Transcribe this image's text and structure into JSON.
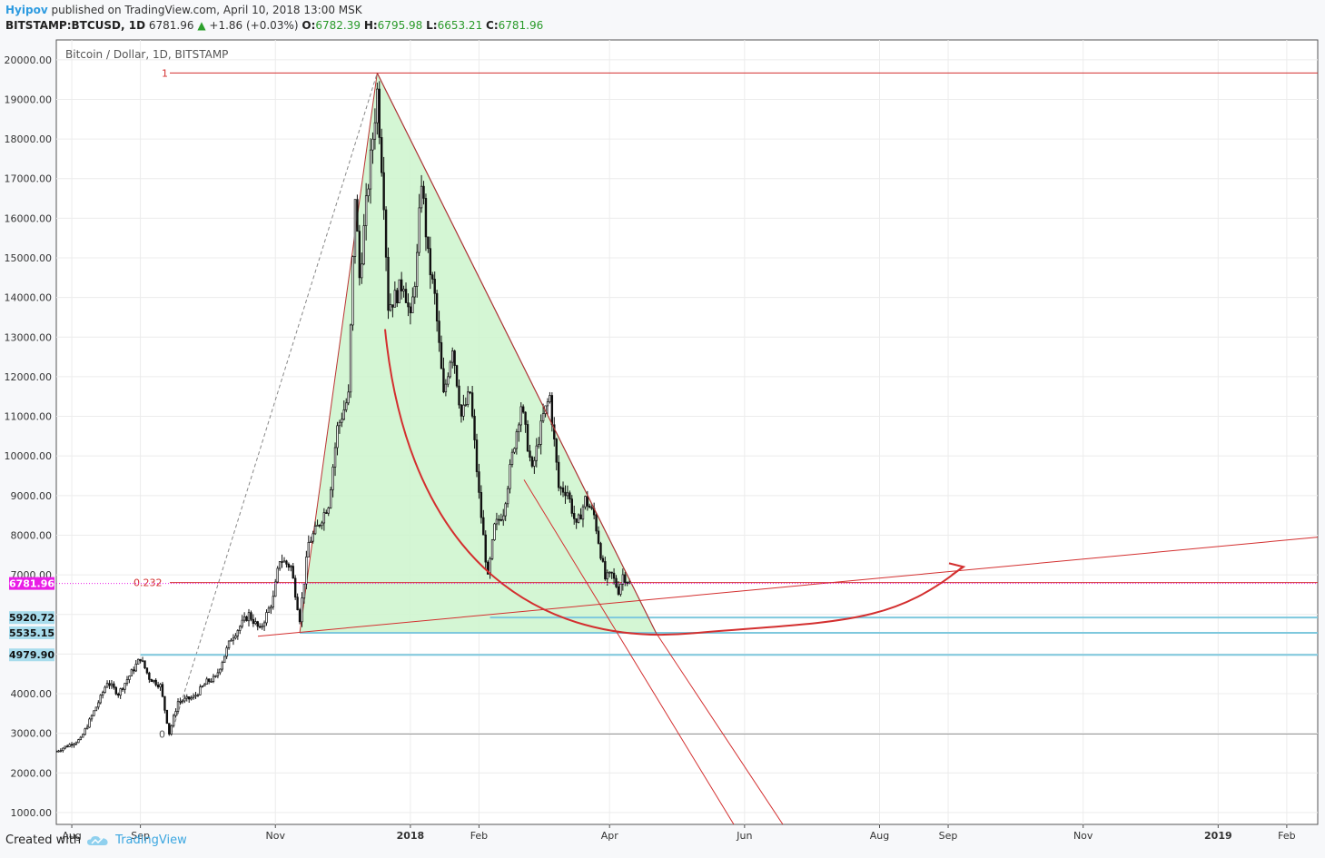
{
  "header": {
    "author": "Hyipov",
    "published_text": "published on TradingView.com, April 10, 2018 13:00 MSK",
    "symbol": "BITSTAMP:BTCUSD, 1D",
    "last_price": "6781.96",
    "change": "+1.86 (+0.03%)",
    "open_label": "O:",
    "open": "6782.39",
    "high_label": "H:",
    "high": "6795.98",
    "low_label": "L:",
    "low": "6653.21",
    "close_label": "C:",
    "close": "6781.96"
  },
  "footer": {
    "created_with": "Created with",
    "brand": "TradingView"
  },
  "colors": {
    "accent_red": "#d32f2f",
    "triangle_fill": "#ccf5cc",
    "support_blue": "#7ec8dd",
    "price_tag": "#e91ee6",
    "label_bg": "#a8dcec"
  },
  "chart_data": {
    "type": "candlestick",
    "title": "Bitcoin / Dollar, 1D, BITSTAMP",
    "ylim": [
      700,
      20500
    ],
    "y_ticks": [
      1000,
      2000,
      3000,
      4000,
      5000,
      6000,
      7000,
      8000,
      9000,
      10000,
      11000,
      12000,
      13000,
      14000,
      15000,
      16000,
      17000,
      18000,
      19000,
      20000
    ],
    "y_tick_labels": [
      "1000.00",
      "2000.00",
      "3000.00",
      "4000.00",
      "4979.90",
      "5535.15",
      "5920.72",
      "6781.96",
      "7000.00",
      "8000.00",
      "9000.00",
      "10000.00",
      "11000.00",
      "12000.00",
      "13000.00",
      "14000.00",
      "15000.00",
      "16000.00",
      "17000.00",
      "18000.00",
      "19000.00",
      "20000.00"
    ],
    "x_ticks": [
      {
        "date": "2017-08-01",
        "label": "Aug"
      },
      {
        "date": "2017-09-01",
        "label": "Sep"
      },
      {
        "date": "2017-11-01",
        "label": "Nov"
      },
      {
        "date": "2018-01-01",
        "label": "2018"
      },
      {
        "date": "2018-02-01",
        "label": "Feb"
      },
      {
        "date": "2018-04-01",
        "label": "Apr"
      },
      {
        "date": "2018-06-01",
        "label": "Jun"
      },
      {
        "date": "2018-08-01",
        "label": "Aug"
      },
      {
        "date": "2018-09-01",
        "label": "Sep"
      },
      {
        "date": "2018-11-01",
        "label": "Nov"
      },
      {
        "date": "2019-01-01",
        "label": "2019"
      },
      {
        "date": "2019-02-01",
        "label": "Feb"
      }
    ],
    "x_range": [
      "2017-07-25",
      "2019-02-15"
    ],
    "price_path": [
      [
        "2017-07-25",
        2550
      ],
      [
        "2017-08-05",
        2850
      ],
      [
        "2017-08-14",
        3900
      ],
      [
        "2017-08-17",
        4300
      ],
      [
        "2017-08-22",
        4000
      ],
      [
        "2017-09-01",
        4900
      ],
      [
        "2017-09-05",
        4400
      ],
      [
        "2017-09-10",
        4200
      ],
      [
        "2017-09-14",
        3000
      ],
      [
        "2017-09-18",
        3800
      ],
      [
        "2017-09-25",
        3900
      ],
      [
        "2017-10-01",
        4300
      ],
      [
        "2017-10-05",
        4400
      ],
      [
        "2017-10-12",
        5400
      ],
      [
        "2017-10-20",
        6000
      ],
      [
        "2017-10-25",
        5600
      ],
      [
        "2017-10-31",
        6400
      ],
      [
        "2017-11-03",
        7400
      ],
      [
        "2017-11-08",
        7200
      ],
      [
        "2017-11-12",
        5900
      ],
      [
        "2017-11-16",
        7800
      ],
      [
        "2017-11-20",
        8200
      ],
      [
        "2017-11-25",
        8800
      ],
      [
        "2017-11-29",
        10700
      ],
      [
        "2017-12-04",
        11500
      ],
      [
        "2017-12-07",
        16600
      ],
      [
        "2017-12-09",
        14500
      ],
      [
        "2017-12-13",
        16900
      ],
      [
        "2017-12-17",
        19200
      ],
      [
        "2017-12-20",
        16500
      ],
      [
        "2017-12-22",
        13800
      ],
      [
        "2017-12-25",
        14000
      ],
      [
        "2017-12-29",
        14400
      ],
      [
        "2018-01-01",
        13400
      ],
      [
        "2018-01-04",
        15000
      ],
      [
        "2018-01-06",
        17000
      ],
      [
        "2018-01-09",
        15000
      ],
      [
        "2018-01-12",
        14000
      ],
      [
        "2018-01-16",
        11500
      ],
      [
        "2018-01-20",
        12800
      ],
      [
        "2018-01-24",
        11000
      ],
      [
        "2018-01-28",
        11600
      ],
      [
        "2018-02-01",
        9000
      ],
      [
        "2018-02-05",
        6900
      ],
      [
        "2018-02-08",
        8200
      ],
      [
        "2018-02-12",
        8600
      ],
      [
        "2018-02-16",
        10000
      ],
      [
        "2018-02-20",
        11300
      ],
      [
        "2018-02-25",
        9600
      ],
      [
        "2018-03-02",
        11000
      ],
      [
        "2018-03-05",
        11500
      ],
      [
        "2018-03-09",
        9200
      ],
      [
        "2018-03-13",
        9100
      ],
      [
        "2018-03-17",
        8200
      ],
      [
        "2018-03-21",
        8900
      ],
      [
        "2018-03-25",
        8500
      ],
      [
        "2018-03-30",
        6900
      ],
      [
        "2018-04-02",
        7000
      ],
      [
        "2018-04-05",
        6600
      ],
      [
        "2018-04-07",
        7000
      ],
      [
        "2018-04-10",
        6781.96
      ]
    ],
    "annotations": [
      {
        "type": "level",
        "label": "1",
        "value": 19666
      },
      {
        "type": "level",
        "label": "0.232",
        "value": 6781.96
      },
      {
        "type": "level",
        "label": "0",
        "value": 2980
      },
      {
        "type": "support",
        "value": 5920.72
      },
      {
        "type": "support",
        "value": 5535.15
      },
      {
        "type": "support",
        "value": 4979.9
      }
    ],
    "current_price": 6781.96,
    "grid": true
  }
}
